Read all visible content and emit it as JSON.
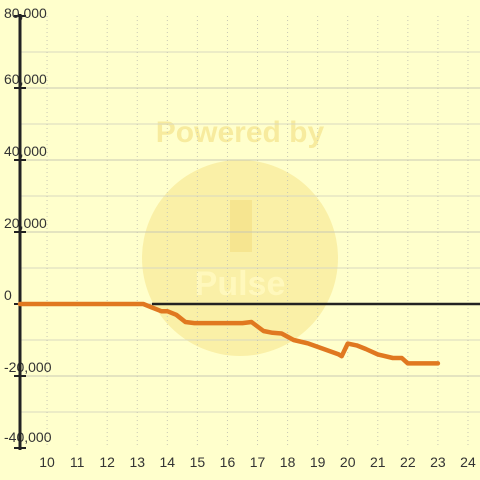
{
  "watermark": {
    "top_text": "Powered by",
    "brand_text": "Pulse",
    "color": "#f2dc7a"
  },
  "colors": {
    "background": "#ffffcc",
    "grid_major": "#c8c8b4",
    "grid_minor": "#d8d8c0",
    "axis": "#222222",
    "series": "#e07820"
  },
  "chart_data": {
    "type": "line",
    "x_ticks": [
      "10",
      "11",
      "12",
      "13",
      "14",
      "15",
      "16",
      "17",
      "18",
      "19",
      "20",
      "21",
      "22",
      "23",
      "24"
    ],
    "y_ticks": [
      "80,000",
      "60,000",
      "40,000",
      "20,000",
      "0",
      "-20,000",
      "-40,000"
    ],
    "y_tick_values": [
      80000,
      60000,
      40000,
      20000,
      0,
      -20000,
      -40000
    ],
    "x_tick_values": [
      10,
      11,
      12,
      13,
      14,
      15,
      16,
      17,
      18,
      19,
      20,
      21,
      22,
      23,
      24
    ],
    "xlim": [
      9.1,
      24.4
    ],
    "ylim": [
      -40000,
      80000
    ],
    "grid": true,
    "series": [
      {
        "x": [
          9.1,
          10,
          11,
          12,
          13,
          13.2,
          13.5,
          13.8,
          14.0,
          14.3,
          14.6,
          14.9,
          15.5,
          16.0,
          16.5,
          16.8,
          17.2,
          17.5,
          17.8,
          18.2,
          18.7,
          19.2,
          19.7,
          19.8,
          20.0,
          20.3,
          20.6,
          21.0,
          21.5,
          21.8,
          22.0,
          22.5,
          23.0
        ],
        "y": [
          0,
          0,
          0,
          0,
          0,
          0,
          -1000,
          -2000,
          -2000,
          -3000,
          -5000,
          -5300,
          -5300,
          -5300,
          -5300,
          -5000,
          -7500,
          -8000,
          -8200,
          -10000,
          -11000,
          -12500,
          -14000,
          -14500,
          -11000,
          -11500,
          -12500,
          -14000,
          -15000,
          -15000,
          -16500,
          -16500,
          -16500
        ]
      }
    ]
  }
}
